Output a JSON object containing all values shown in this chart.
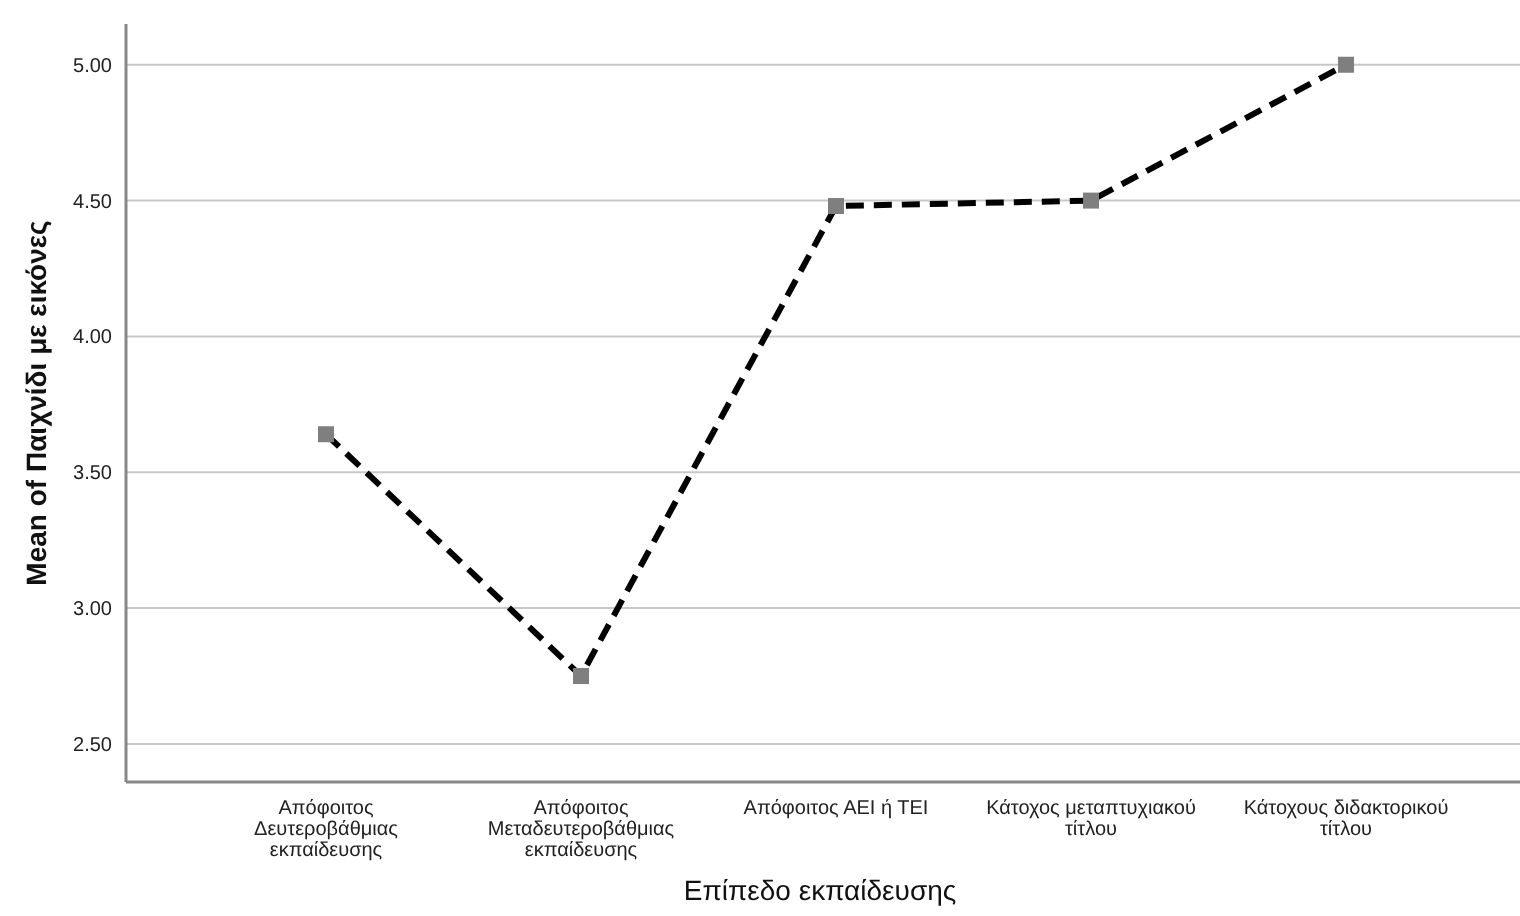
{
  "chart_data": {
    "type": "line",
    "xlabel": "Επίπεδο εκπαίδευσης",
    "ylabel": "Mean of Παιχνίδι με εικόνες",
    "categories": [
      "Απόφοιτος Δευτεροβάθμιας εκπαίδευσης",
      "Απόφοιτος Μεταδευτεροβάθμιας εκπαίδευσης",
      "Απόφοιτος ΑΕΙ ή ΤΕΙ",
      "Κάτοχος μεταπτυχιακού τίτλου",
      "Κάτοχους διδακτορικού τίτλου"
    ],
    "series": [
      {
        "color": "#000000",
        "values": [
          3.64,
          2.75,
          4.48,
          4.5,
          5.0
        ]
      }
    ],
    "ylim": [
      2.36,
      5.15
    ],
    "yticks": [
      {
        "value": 2.5,
        "label": "2.50"
      },
      {
        "value": 3,
        "label": "3.00"
      },
      {
        "value": 3.5,
        "label": "3.50"
      },
      {
        "value": 4,
        "label": "4.00"
      },
      {
        "value": 4.5,
        "label": "4.50"
      },
      {
        "value": 5,
        "label": "5.00"
      }
    ],
    "grid": "y",
    "marker": "square",
    "line_style": "dashed"
  }
}
